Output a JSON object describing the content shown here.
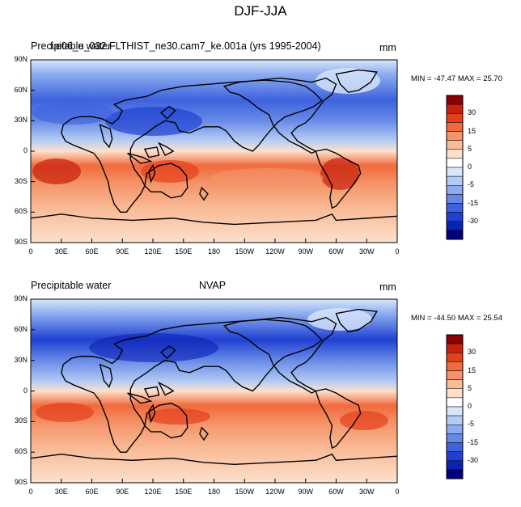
{
  "figure_title": "DJF-JJA",
  "panels": [
    {
      "title_left": "Precipitable water",
      "title_center": "f.e06_u_032.FLTHIST_ne30.cam7_ke.001a (yrs 1995-2004)",
      "units": "mm",
      "stats": "MIN = -47.47 MAX =  25.70"
    },
    {
      "title_left": "Precipitable water",
      "title_center": "NVAP",
      "units": "mm",
      "stats": "MIN = -44.50 MAX =  25.54"
    }
  ],
  "lat_labels": [
    "90N",
    "60N",
    "30N",
    "0",
    "30S",
    "60S",
    "90S"
  ],
  "lon_labels": [
    "0",
    "30E",
    "60E",
    "90E",
    "120E",
    "150E",
    "180",
    "150W",
    "120W",
    "90W",
    "60W",
    "30W",
    "0"
  ],
  "colorbar": {
    "labels": [
      "30",
      "15",
      "5",
      "0",
      "-5",
      "-15",
      "-30"
    ],
    "colors": [
      "#8b0000",
      "#c8200c",
      "#e4401c",
      "#f06a3c",
      "#f5946a",
      "#f9bc98",
      "#fde0cc",
      "#ffffff",
      "#d8e6fb",
      "#b4ccf5",
      "#8cacef",
      "#6688e6",
      "#3e62de",
      "#2040d2",
      "#0b22b6",
      "#00007e"
    ]
  }
}
